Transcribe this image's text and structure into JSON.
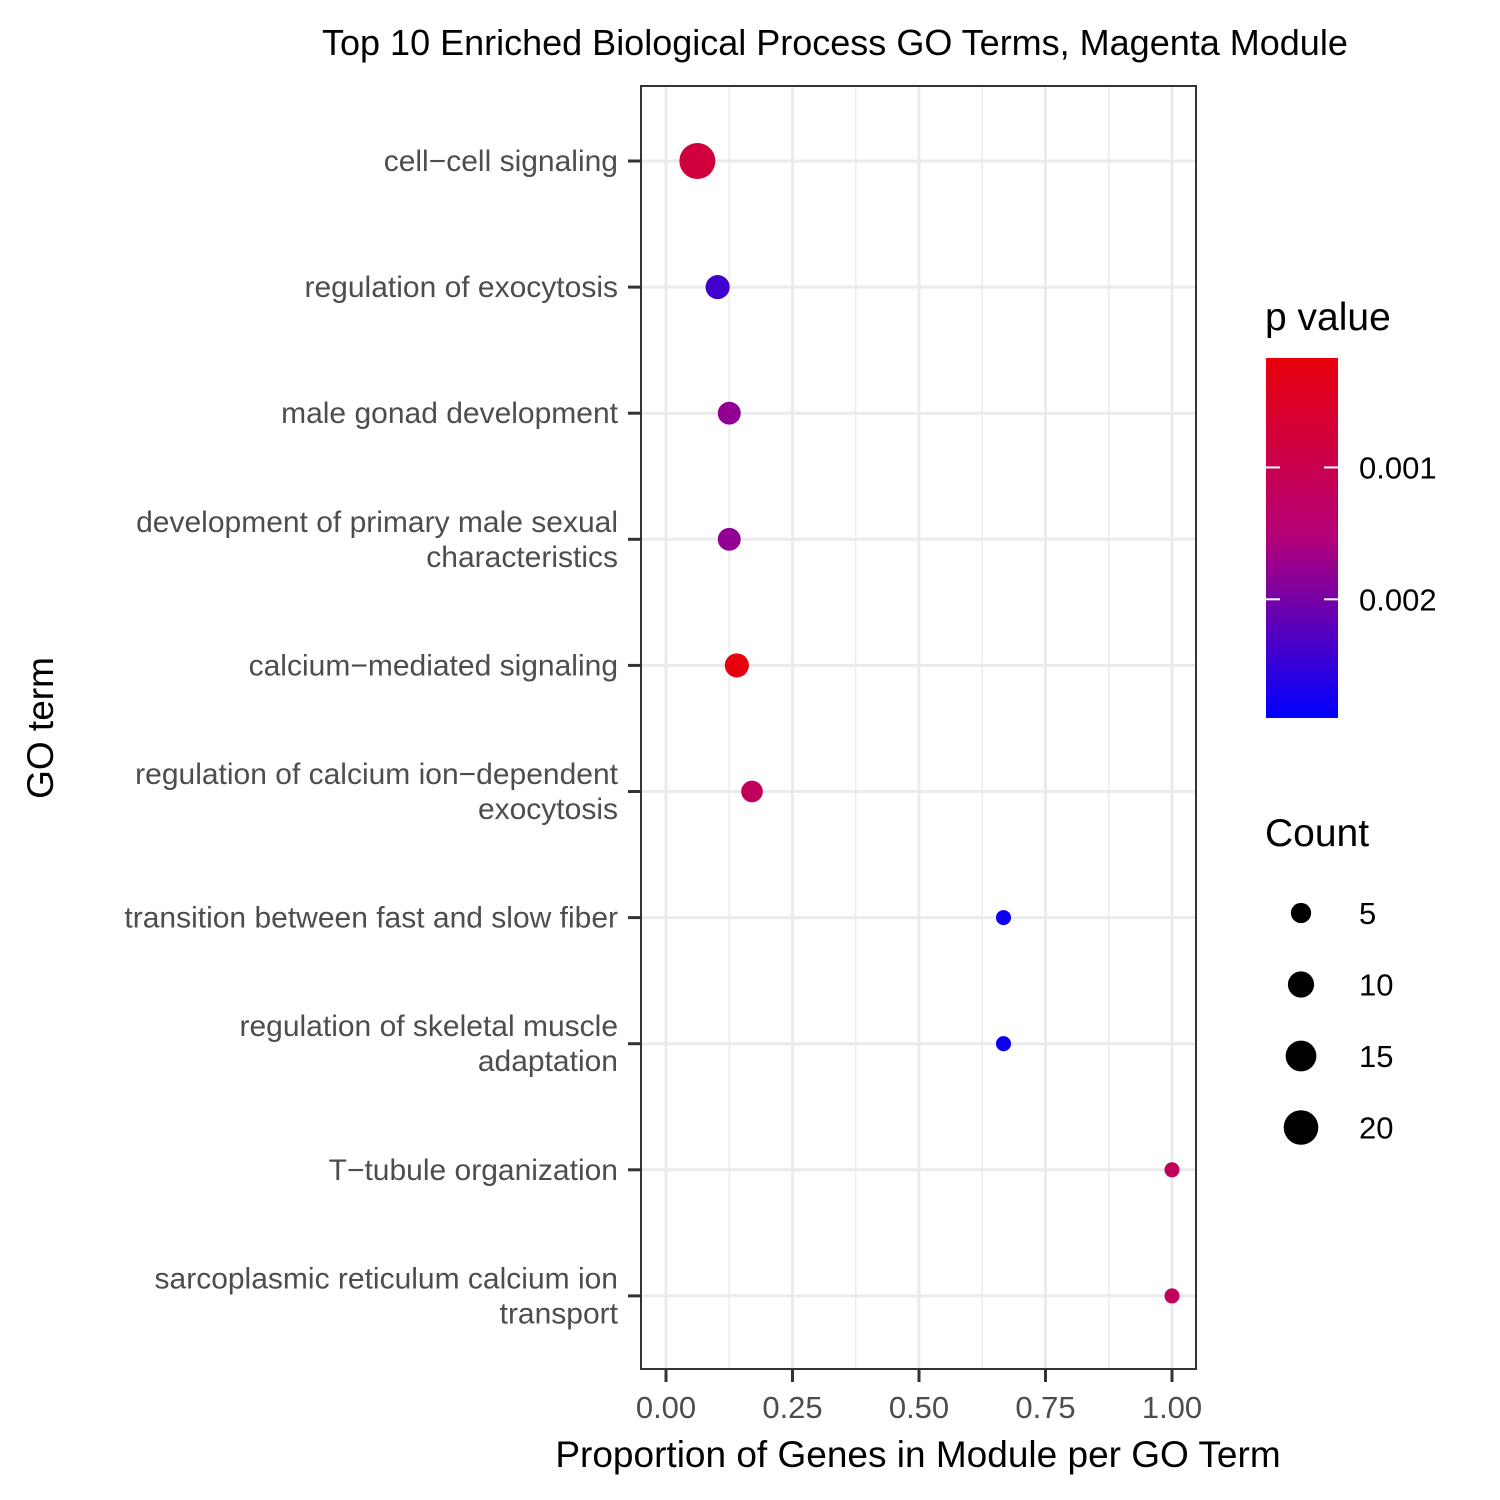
{
  "chart_data": {
    "type": "scatter",
    "title": "Top 10 Enriched Biological Process GO Terms, Magenta Module",
    "xlabel": "Proportion of Genes in Module per GO Term",
    "ylabel": "GO term",
    "xlim": [
      -0.05,
      1.05
    ],
    "x_ticks": [
      "0.00",
      "0.25",
      "0.50",
      "0.75",
      "1.00"
    ],
    "x_tick_values": [
      0,
      0.25,
      0.5,
      0.75,
      1.0
    ],
    "grid": true,
    "legend_placement": "right",
    "categories": [
      [
        "cell−cell signaling"
      ],
      [
        "regulation of exocytosis"
      ],
      [
        "male gonad development"
      ],
      [
        "development of primary male sexual",
        "characteristics"
      ],
      [
        "calcium−mediated signaling"
      ],
      [
        "regulation of calcium ion−dependent",
        "exocytosis"
      ],
      [
        "transition between fast and slow fiber"
      ],
      [
        "regulation of skeletal muscle",
        "adaptation"
      ],
      [
        "T−tubule organization"
      ],
      [
        "sarcoplasmic reticulum calcium ion",
        "transport"
      ]
    ],
    "points": [
      {
        "x": 0.062,
        "count": 22,
        "p": 0.0008
      },
      {
        "x": 0.102,
        "count": 8,
        "p": 0.0024
      },
      {
        "x": 0.125,
        "count": 7,
        "p": 0.0018
      },
      {
        "x": 0.125,
        "count": 7,
        "p": 0.0018
      },
      {
        "x": 0.14,
        "count": 8,
        "p": 0.0002
      },
      {
        "x": 0.17,
        "count": 6,
        "p": 0.0012
      },
      {
        "x": 0.667,
        "count": 2,
        "p": 0.0028
      },
      {
        "x": 0.667,
        "count": 2,
        "p": 0.0028
      },
      {
        "x": 1.0,
        "count": 2,
        "p": 0.0012
      },
      {
        "x": 1.0,
        "count": 2,
        "p": 0.0012
      }
    ],
    "color_legend": {
      "title": "p value",
      "ticks": [
        "0.001",
        "0.002"
      ],
      "tick_values": [
        0.001,
        0.002
      ],
      "range": [
        0.00017,
        0.0029
      ],
      "low_color": "#e8000b",
      "high_color": "#0000ff"
    },
    "size_legend": {
      "title": "Count",
      "labels": [
        "5",
        "10",
        "15",
        "20"
      ],
      "values": [
        5,
        10,
        15,
        20
      ]
    }
  }
}
